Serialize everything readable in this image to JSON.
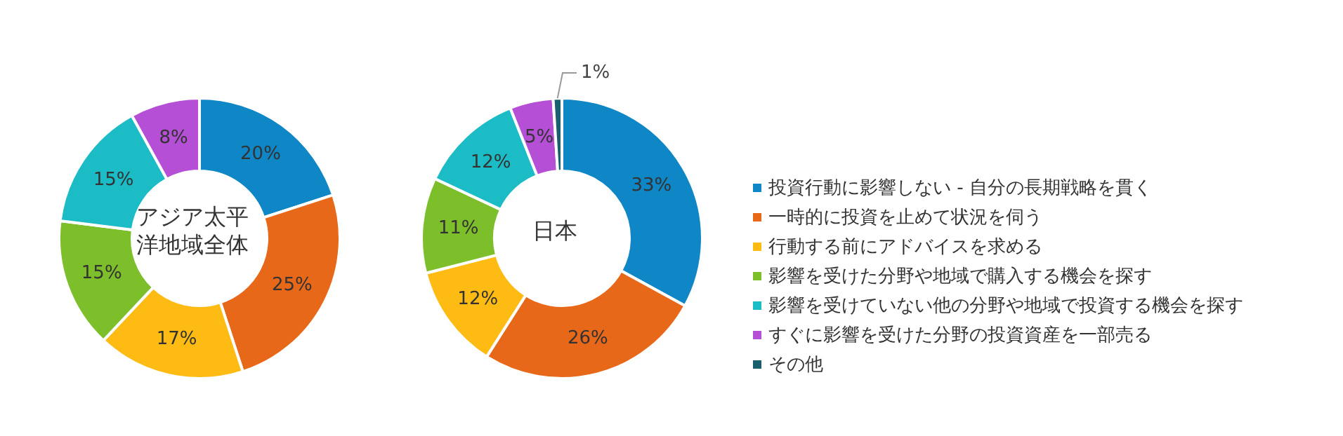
{
  "chart_data": [
    {
      "type": "donut",
      "title": "アジア太平洋地域全体",
      "values": [
        20,
        25,
        17,
        15,
        15,
        8
      ],
      "value_labels": [
        "20%",
        "25%",
        "17%",
        "15%",
        "15%",
        "8%"
      ],
      "colors": [
        "#0f86c6",
        "#e8681a",
        "#fdbb13",
        "#7cbf2a",
        "#1bbcc5",
        "#b54fd6"
      ]
    },
    {
      "type": "donut",
      "title": "日本",
      "legend": "right",
      "categories": [
        "投資行動に影響しない - 自分の長期戦略を貫く",
        "一時的に投資を止めて状況を伺う",
        "行動する前にアドバイスを求める",
        "影響を受けた分野や地域で購入する機会を探す",
        "影響を受けていない他の分野や地域で投資する機会を探す",
        "すぐに影響を受けた分野の投資資産を一部売る",
        "その他"
      ],
      "values": [
        33,
        26,
        12,
        11,
        12,
        5,
        1
      ],
      "value_labels": [
        "33%",
        "26%",
        "12%",
        "11%",
        "12%",
        "5%",
        "1%"
      ],
      "colors": [
        "#0f86c6",
        "#e8681a",
        "#fdbb13",
        "#7cbf2a",
        "#1bbcc5",
        "#b54fd6",
        "#1a5f6e"
      ]
    }
  ]
}
